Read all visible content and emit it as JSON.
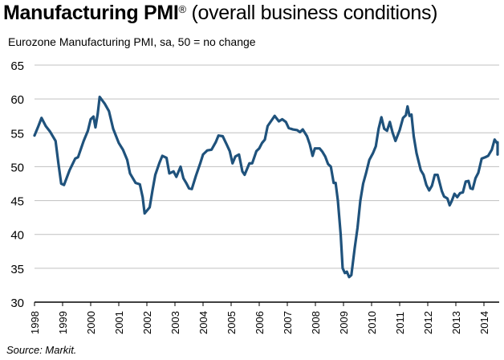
{
  "chart_data": {
    "type": "line",
    "title_bold": "Manufacturing PMI",
    "title_mark": "®",
    "title_rest": " (overall business conditions)",
    "subtitle": "Eurozone Manufacturing PMI, sa, 50 = no change",
    "source": "Source: Markit.",
    "xlabel": "",
    "ylabel": "",
    "ylim": [
      30,
      65
    ],
    "xlim": [
      1998,
      2014.6
    ],
    "grid": true,
    "line_color": "#1f527c",
    "yticks": [
      "30",
      "35",
      "40",
      "45",
      "50",
      "55",
      "60",
      "65"
    ],
    "xticks": [
      "1998",
      "1999",
      "2000",
      "2001",
      "2002",
      "2003",
      "2004",
      "2005",
      "2006",
      "2007",
      "2008",
      "2009",
      "2010",
      "2011",
      "2012",
      "2013",
      "2014"
    ],
    "series": [
      {
        "name": "Eurozone Manufacturing PMI",
        "points": [
          [
            1998.0,
            54.6
          ],
          [
            1998.12,
            55.8
          ],
          [
            1998.25,
            57.2
          ],
          [
            1998.4,
            56
          ],
          [
            1998.55,
            55.2
          ],
          [
            1998.75,
            53.8
          ],
          [
            1998.85,
            50.5
          ],
          [
            1998.95,
            47.5
          ],
          [
            1999.05,
            47.3
          ],
          [
            1999.25,
            49.5
          ],
          [
            1999.45,
            51.2
          ],
          [
            1999.55,
            51.4
          ],
          [
            1999.75,
            53.8
          ],
          [
            1999.9,
            55.3
          ],
          [
            2000.0,
            57
          ],
          [
            2000.1,
            57.4
          ],
          [
            2000.17,
            55.8
          ],
          [
            2000.25,
            57.8
          ],
          [
            2000.32,
            60.3
          ],
          [
            2000.5,
            59.3
          ],
          [
            2000.65,
            58.2
          ],
          [
            2000.8,
            55.6
          ],
          [
            2001.0,
            53.5
          ],
          [
            2001.15,
            52.5
          ],
          [
            2001.3,
            51
          ],
          [
            2001.4,
            49
          ],
          [
            2001.6,
            47.6
          ],
          [
            2001.75,
            47.4
          ],
          [
            2001.85,
            45.5
          ],
          [
            2001.92,
            43.1
          ],
          [
            2002.1,
            44
          ],
          [
            2002.2,
            46.5
          ],
          [
            2002.3,
            48.8
          ],
          [
            2002.45,
            50.6
          ],
          [
            2002.55,
            51.6
          ],
          [
            2002.7,
            51.3
          ],
          [
            2002.8,
            49.0
          ],
          [
            2002.95,
            49.3
          ],
          [
            2003.05,
            48.5
          ],
          [
            2003.2,
            50
          ],
          [
            2003.3,
            48.3
          ],
          [
            2003.4,
            47.6
          ],
          [
            2003.5,
            46.8
          ],
          [
            2003.6,
            46.7
          ],
          [
            2003.75,
            48.7
          ],
          [
            2003.9,
            50.5
          ],
          [
            2004.0,
            51.8
          ],
          [
            2004.15,
            52.4
          ],
          [
            2004.3,
            52.5
          ],
          [
            2004.45,
            53.6
          ],
          [
            2004.55,
            54.6
          ],
          [
            2004.7,
            54.5
          ],
          [
            2004.85,
            53.2
          ],
          [
            2004.95,
            52.3
          ],
          [
            2005.05,
            50.5
          ],
          [
            2005.15,
            51.5
          ],
          [
            2005.28,
            51.8
          ],
          [
            2005.4,
            49.3
          ],
          [
            2005.48,
            48.8
          ],
          [
            2005.65,
            50.5
          ],
          [
            2005.75,
            50.5
          ],
          [
            2005.9,
            52.3
          ],
          [
            2006.0,
            52.7
          ],
          [
            2006.1,
            53.5
          ],
          [
            2006.2,
            54
          ],
          [
            2006.3,
            56
          ],
          [
            2006.45,
            56.9
          ],
          [
            2006.55,
            57.5
          ],
          [
            2006.7,
            56.7
          ],
          [
            2006.82,
            57
          ],
          [
            2006.95,
            56.6
          ],
          [
            2007.05,
            55.7
          ],
          [
            2007.2,
            55.5
          ],
          [
            2007.35,
            55.4
          ],
          [
            2007.45,
            55.1
          ],
          [
            2007.55,
            55.5
          ],
          [
            2007.7,
            54.5
          ],
          [
            2007.8,
            53.3
          ],
          [
            2007.9,
            51.6
          ],
          [
            2007.98,
            52.7
          ],
          [
            2008.15,
            52.7
          ],
          [
            2008.25,
            52.2
          ],
          [
            2008.35,
            51.5
          ],
          [
            2008.45,
            50.4
          ],
          [
            2008.55,
            50
          ],
          [
            2008.65,
            47.6
          ],
          [
            2008.72,
            47.6
          ],
          [
            2008.8,
            45
          ],
          [
            2008.9,
            40
          ],
          [
            2008.97,
            35
          ],
          [
            2009.05,
            34.3
          ],
          [
            2009.12,
            34.5
          ],
          [
            2009.2,
            33.7
          ],
          [
            2009.28,
            34
          ],
          [
            2009.4,
            38
          ],
          [
            2009.5,
            41
          ],
          [
            2009.6,
            45
          ],
          [
            2009.7,
            47.5
          ],
          [
            2009.8,
            49
          ],
          [
            2009.92,
            51
          ],
          [
            2010.05,
            52
          ],
          [
            2010.15,
            53
          ],
          [
            2010.25,
            55.6
          ],
          [
            2010.35,
            57.3
          ],
          [
            2010.45,
            55.6
          ],
          [
            2010.55,
            55.3
          ],
          [
            2010.65,
            56.6
          ],
          [
            2010.75,
            55
          ],
          [
            2010.85,
            53.8
          ],
          [
            2011.0,
            55.4
          ],
          [
            2011.12,
            57.2
          ],
          [
            2011.22,
            57.6
          ],
          [
            2011.28,
            58.9
          ],
          [
            2011.35,
            57.5
          ],
          [
            2011.42,
            57.7
          ],
          [
            2011.5,
            54.5
          ],
          [
            2011.6,
            52
          ],
          [
            2011.75,
            49.5
          ],
          [
            2011.85,
            48.8
          ],
          [
            2011.95,
            47.3
          ],
          [
            2012.05,
            46.5
          ],
          [
            2012.15,
            47.2
          ],
          [
            2012.25,
            48.8
          ],
          [
            2012.35,
            48.8
          ],
          [
            2012.5,
            46.4
          ],
          [
            2012.58,
            45.6
          ],
          [
            2012.7,
            45.3
          ],
          [
            2012.78,
            44.3
          ],
          [
            2012.85,
            44.9
          ],
          [
            2012.95,
            46
          ],
          [
            2013.05,
            45.5
          ],
          [
            2013.15,
            46.1
          ],
          [
            2013.25,
            46.2
          ],
          [
            2013.35,
            47.8
          ],
          [
            2013.45,
            47.9
          ],
          [
            2013.52,
            46.8
          ],
          [
            2013.6,
            46.7
          ],
          [
            2013.7,
            48.3
          ],
          [
            2013.8,
            49.1
          ],
          [
            2013.92,
            51.2
          ],
          [
            2014.05,
            51.4
          ],
          [
            2014.15,
            51.6
          ],
          [
            2014.28,
            52.5
          ],
          [
            2014.38,
            54
          ],
          [
            2014.48,
            53.4
          ],
          [
            2014.58,
            53.6
          ],
          [
            2014.68,
            52.3
          ],
          [
            2014.78,
            51.8
          ],
          [
            2014.9,
            51.8
          ]
        ]
      }
    ]
  }
}
